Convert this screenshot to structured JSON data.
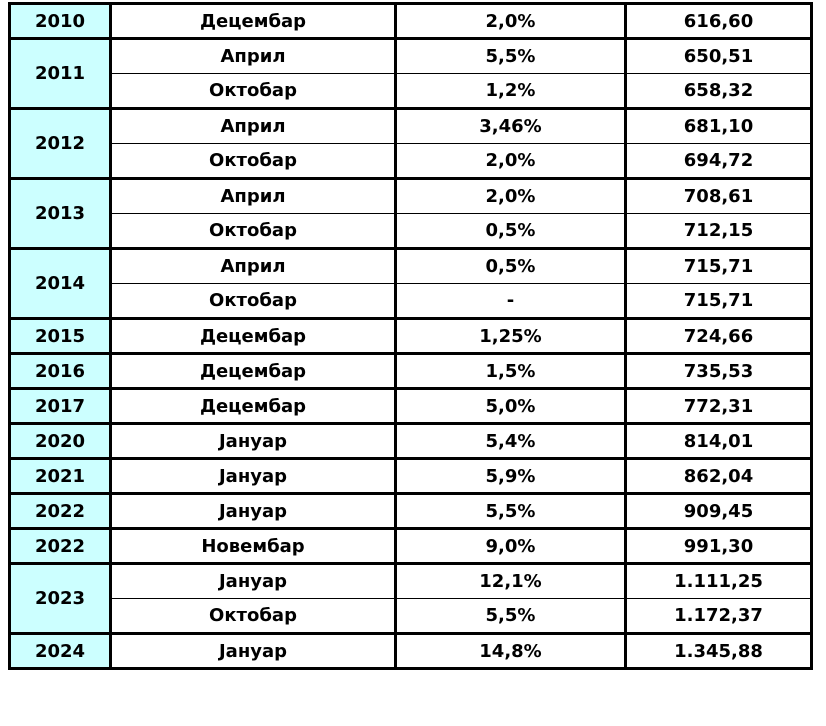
{
  "table": {
    "description_colors": {
      "border": "#000000",
      "year_column_background": "#ccffff",
      "cell_background": "#ffffff",
      "text": "#000000"
    },
    "columns": [
      "year",
      "month",
      "rate",
      "value"
    ],
    "groups": [
      {
        "year": "2010",
        "entries": [
          {
            "month": "Децембар",
            "rate": "2,0%",
            "value": "616,60"
          }
        ]
      },
      {
        "year": "2011",
        "entries": [
          {
            "month": "Април",
            "rate": "5,5%",
            "value": "650,51"
          },
          {
            "month": "Октобар",
            "rate": "1,2%",
            "value": "658,32"
          }
        ]
      },
      {
        "year": "2012",
        "entries": [
          {
            "month": "Април",
            "rate": "3,46%",
            "value": "681,10"
          },
          {
            "month": "Октобар",
            "rate": "2,0%",
            "value": "694,72"
          }
        ]
      },
      {
        "year": "2013",
        "entries": [
          {
            "month": "Април",
            "rate": "2,0%",
            "value": "708,61"
          },
          {
            "month": "Октобар",
            "rate": "0,5%",
            "value": "712,15"
          }
        ]
      },
      {
        "year": "2014",
        "entries": [
          {
            "month": "Април",
            "rate": "0,5%",
            "value": "715,71"
          },
          {
            "month": "Октобар",
            "rate": "-",
            "value": "715,71"
          }
        ]
      },
      {
        "year": "2015",
        "entries": [
          {
            "month": "Децембар",
            "rate": "1,25%",
            "value": "724,66"
          }
        ]
      },
      {
        "year": "2016",
        "entries": [
          {
            "month": "Децембар",
            "rate": "1,5%",
            "value": "735,53"
          }
        ]
      },
      {
        "year": "2017",
        "entries": [
          {
            "month": "Децембар",
            "rate": "5,0%",
            "value": "772,31"
          }
        ]
      },
      {
        "year": "2020",
        "entries": [
          {
            "month": "Јануар",
            "rate": "5,4%",
            "value": "814,01"
          }
        ]
      },
      {
        "year": "2021",
        "entries": [
          {
            "month": "Јануар",
            "rate": "5,9%",
            "value": "862,04"
          }
        ]
      },
      {
        "year": "2022",
        "entries": [
          {
            "month": "Јануар",
            "rate": "5,5%",
            "value": "909,45"
          }
        ]
      },
      {
        "year": "2022",
        "entries": [
          {
            "month": "Новембар",
            "rate": "9,0%",
            "value": "991,30"
          }
        ]
      },
      {
        "year": "2023",
        "entries": [
          {
            "month": "Јануар",
            "rate": "12,1%",
            "value": "1.111,25"
          },
          {
            "month": "Октобар",
            "rate": "5,5%",
            "value": "1.172,37"
          }
        ]
      },
      {
        "year": "2024",
        "entries": [
          {
            "month": "Јануар",
            "rate": "14,8%",
            "value": "1.345,88"
          }
        ]
      }
    ]
  }
}
